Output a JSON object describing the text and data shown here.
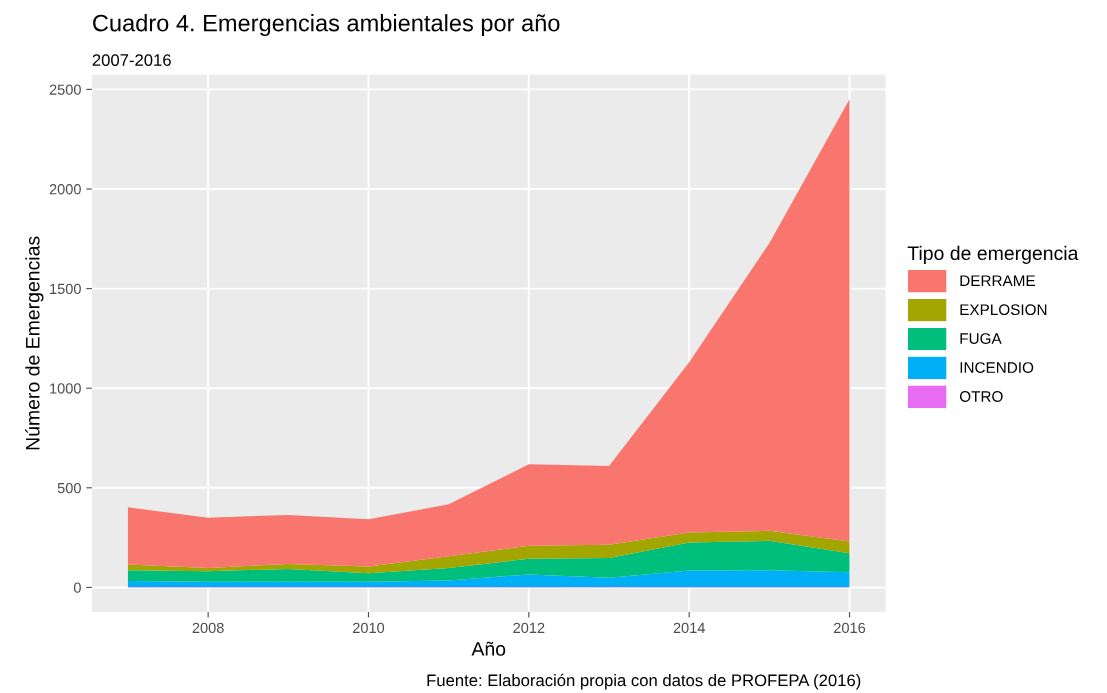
{
  "chart_data": {
    "type": "area",
    "stacked": true,
    "title": "Cuadro 4. Emergencias ambientales por año",
    "subtitle": "2007-2016",
    "xlabel": "Año",
    "ylabel": "Número de Emergencias",
    "legend_title": "Tipo de emergencia",
    "legend": "right",
    "grid": true,
    "x": [
      2007,
      2008,
      2009,
      2010,
      2011,
      2012,
      2013,
      2014,
      2015,
      2016
    ],
    "xlim": [
      2006.55,
      2016.45
    ],
    "xticks": [
      2008,
      2010,
      2012,
      2014,
      2016
    ],
    "ylim": [
      -123,
      2573
    ],
    "yticks": [
      0,
      500,
      1000,
      1500,
      2000,
      2500
    ],
    "series": [
      {
        "name": "OTRO",
        "color": "#e76bf3",
        "values": [
          2,
          2,
          2,
          2,
          2,
          2,
          2,
          2,
          2,
          2
        ]
      },
      {
        "name": "INCENDIO",
        "color": "#00b0f6",
        "values": [
          30,
          26,
          26,
          26,
          33,
          63,
          46,
          83,
          84,
          74
        ]
      },
      {
        "name": "FUGA",
        "color": "#00bf7d",
        "values": [
          54,
          53,
          65,
          43,
          63,
          79,
          100,
          141,
          148,
          95
        ]
      },
      {
        "name": "EXPLOSION",
        "color": "#a3a500",
        "values": [
          29,
          17,
          25,
          34,
          58,
          65,
          66,
          50,
          50,
          60
        ]
      },
      {
        "name": "DERRAME",
        "color": "#f8766d",
        "values": [
          287,
          252,
          246,
          237,
          261,
          409,
          395,
          854,
          1444,
          2219
        ]
      }
    ],
    "annotations": [
      "Fuente: Elaboración propia con datos de PROFEPA (2016)"
    ]
  }
}
